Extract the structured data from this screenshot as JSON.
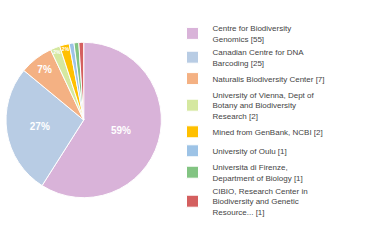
{
  "chart_data": {
    "type": "pie",
    "categories": [
      "Centre for Biodiversity\nGenomics [55]",
      "Canadian Centre for DNA\nBarcoding [25]",
      "Naturalis Biodiversity Center [7]",
      "University of Vienna, Dept of\nBotany and Biodiversity\nResearch [2]",
      "Mined from GenBank, NCBI [2]",
      "University of Oulu [1]",
      "Universita di Firenze,\nDepartment of Biology [1]",
      "CIBIO, Research Center in\nBiodiversity and Genetic\nResource... [1]"
    ],
    "values": [
      59,
      27,
      7,
      2,
      2,
      1,
      1,
      1
    ],
    "value_labels": [
      "59%",
      "27%",
      "7%",
      "2%",
      "2%",
      null,
      null,
      null
    ],
    "colors": [
      "#d9b3d9",
      "#b8cce4",
      "#f4b183",
      "#d5e8a0",
      "#ffc000",
      "#9dc3e6",
      "#82c482",
      "#d45f5f"
    ],
    "data_labels": true,
    "legend": "right"
  }
}
